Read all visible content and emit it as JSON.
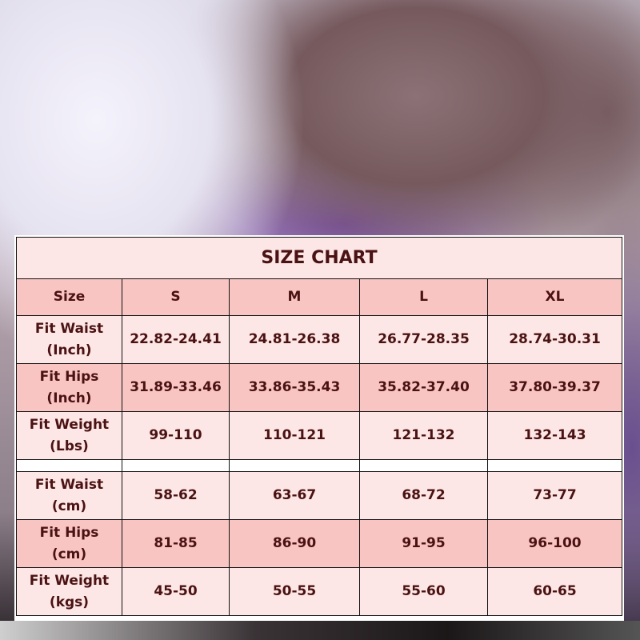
{
  "title": "SIZE CHART",
  "header": [
    "Size",
    "S",
    "M",
    "L",
    "XL"
  ],
  "rows": [
    {
      "label1": "Fit Waist",
      "label2": "(Inch)",
      "values": [
        "22.82-24.41",
        "24.81-26.38",
        "26.77-28.35",
        "28.74-30.31"
      ]
    },
    {
      "label1": "Fit Hips",
      "label2": "(Inch)",
      "values": [
        "31.89-33.46",
        "33.86-35.43",
        "35.82-37.40",
        "37.80-39.37"
      ]
    },
    {
      "label1": "Fit Weight",
      "label2": "(Lbs)",
      "values": [
        "99-110",
        "110-121",
        "121-132",
        "132-143"
      ]
    },
    {
      "label1": "Fit Waist",
      "label2": "(cm)",
      "values": [
        "58-62",
        "63-67",
        "68-72",
        "73-77"
      ]
    },
    {
      "label1": "Fit Hips",
      "label2": "(cm)",
      "values": [
        "81-85",
        "86-90",
        "91-95",
        "96-100"
      ]
    },
    {
      "label1": "Fit Weight",
      "label2": "(kgs)",
      "values": [
        "45-50",
        "50-55",
        "55-60",
        "60-65"
      ]
    }
  ],
  "colors": {
    "light": "#fde6e6",
    "dark": "#f9c5c3",
    "text": "#4a1212"
  }
}
